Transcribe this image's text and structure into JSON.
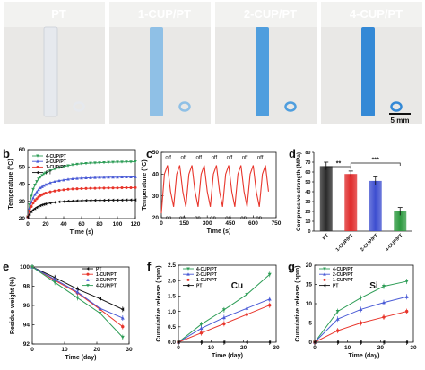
{
  "panel_a": {
    "letter": "a",
    "labels": [
      "PT",
      "1-CUP/PT",
      "2-CUP/PT",
      "4-CUP/PT"
    ],
    "scale_bar": "5 mm",
    "fiber_colors": [
      "#e6e9ee",
      "#8fc0e6",
      "#4f9ede",
      "#3489d6"
    ]
  },
  "chart_data": [
    {
      "id": "b",
      "letter": "b",
      "type": "line",
      "xlabel": "Time (s)",
      "ylabel": "Temperature (°C)",
      "xlim": [
        0,
        120
      ],
      "ylim": [
        20,
        60
      ],
      "xticks": [
        0,
        20,
        40,
        60,
        80,
        100,
        120
      ],
      "yticks": [
        20,
        30,
        40,
        50,
        60
      ],
      "legend_position": "top-left",
      "series": [
        {
          "name": "4-CUP/PT",
          "color": "#2e9d57",
          "marker": "triangle-down",
          "x": [
            0,
            2,
            4,
            6,
            8,
            10,
            12,
            14,
            16,
            18,
            20,
            25,
            30,
            35,
            40,
            45,
            50,
            55,
            60,
            65,
            70,
            75,
            80,
            85,
            90,
            95,
            100,
            105,
            110,
            115,
            120
          ],
          "y": [
            21,
            28,
            33,
            37,
            39.5,
            41.5,
            43,
            44,
            45,
            46,
            46.5,
            47.8,
            48.8,
            49.5,
            50.2,
            50.7,
            51.2,
            51.5,
            51.8,
            52,
            52.2,
            52.3,
            52.4,
            52.5,
            52.6,
            52.7,
            52.8,
            52.8,
            52.9,
            52.9,
            53
          ]
        },
        {
          "name": "2-CUP/PT",
          "color": "#4a5bd6",
          "marker": "triangle-up",
          "x": [
            0,
            2,
            4,
            6,
            8,
            10,
            12,
            14,
            16,
            18,
            20,
            25,
            30,
            35,
            40,
            45,
            50,
            55,
            60,
            65,
            70,
            75,
            80,
            85,
            90,
            95,
            100,
            105,
            110,
            115,
            120
          ],
          "y": [
            21,
            26,
            29.5,
            32,
            34,
            35.5,
            36.8,
            37.8,
            38.5,
            39.2,
            39.8,
            40.8,
            41.5,
            42,
            42.4,
            42.8,
            43.1,
            43.3,
            43.5,
            43.6,
            43.7,
            43.8,
            43.9,
            43.9,
            44,
            44,
            44,
            44.1,
            44.1,
            44.1,
            44.2
          ]
        },
        {
          "name": "1-CUP/PT",
          "color": "#e8352b",
          "marker": "circle",
          "x": [
            0,
            2,
            4,
            6,
            8,
            10,
            12,
            14,
            16,
            18,
            20,
            25,
            30,
            35,
            40,
            45,
            50,
            55,
            60,
            65,
            70,
            75,
            80,
            85,
            90,
            95,
            100,
            105,
            110,
            115,
            120
          ],
          "y": [
            21,
            24.5,
            27,
            29,
            30.5,
            31.5,
            32.5,
            33.3,
            33.9,
            34.4,
            34.8,
            35.5,
            36,
            36.4,
            36.7,
            37,
            37.2,
            37.3,
            37.4,
            37.5,
            37.6,
            37.6,
            37.7,
            37.7,
            37.8,
            37.8,
            37.8,
            37.9,
            37.9,
            37.9,
            38
          ]
        },
        {
          "name": "PT",
          "color": "#111111",
          "marker": "arrow-left",
          "x": [
            0,
            2,
            4,
            6,
            8,
            10,
            12,
            14,
            16,
            18,
            20,
            25,
            30,
            35,
            40,
            45,
            50,
            55,
            60,
            65,
            70,
            75,
            80,
            85,
            90,
            95,
            100,
            105,
            110,
            115,
            120
          ],
          "y": [
            21,
            22.5,
            24,
            25,
            25.8,
            26.5,
            27,
            27.5,
            27.9,
            28.2,
            28.5,
            29,
            29.4,
            29.7,
            29.9,
            30.1,
            30.2,
            30.3,
            30.4,
            30.5,
            30.5,
            30.6,
            30.6,
            30.6,
            30.7,
            30.7,
            30.7,
            30.7,
            30.8,
            30.8,
            30.8
          ]
        }
      ]
    },
    {
      "id": "c",
      "letter": "c",
      "type": "line",
      "xlabel": "Time (s)",
      "ylabel": "Temperature (°C)",
      "xlim": [
        0,
        750
      ],
      "ylim": [
        20,
        50
      ],
      "xticks": [
        0,
        150,
        300,
        450,
        600,
        750
      ],
      "yticks": [
        20,
        30,
        40,
        50
      ],
      "series": [
        {
          "name": "",
          "color": "#e8352b",
          "x": [
            0,
            20,
            40,
            60,
            80,
            100,
            120,
            140,
            160,
            180,
            200,
            220,
            240,
            260,
            280,
            300,
            320,
            340,
            360,
            380,
            400,
            420,
            440,
            460,
            480,
            500,
            520,
            540,
            560,
            580,
            600,
            620,
            640,
            660,
            680,
            700
          ],
          "y": [
            22,
            40,
            44,
            32,
            25,
            40,
            44,
            32,
            25,
            40,
            44,
            32,
            25,
            40,
            44,
            32,
            25,
            40,
            44,
            32,
            25,
            40,
            44,
            32,
            25,
            40,
            44,
            32,
            25,
            40,
            44,
            32,
            25,
            40,
            44,
            32
          ]
        }
      ],
      "annotations_off": [
        {
          "text": "off",
          "x": 45,
          "y": 47
        },
        {
          "text": "off",
          "x": 145,
          "y": 47
        },
        {
          "text": "off",
          "x": 245,
          "y": 47
        },
        {
          "text": "off",
          "x": 345,
          "y": 47
        },
        {
          "text": "off",
          "x": 445,
          "y": 47
        },
        {
          "text": "off",
          "x": 545,
          "y": 47
        },
        {
          "text": "off",
          "x": 645,
          "y": 47
        }
      ],
      "annotations_on": [
        {
          "text": "on",
          "x": 0,
          "y": 22
        },
        {
          "text": "on",
          "x": 90,
          "y": 22
        },
        {
          "text": "on",
          "x": 190,
          "y": 22
        },
        {
          "text": "on",
          "x": 290,
          "y": 22
        },
        {
          "text": "on",
          "x": 390,
          "y": 22
        },
        {
          "text": "on",
          "x": 490,
          "y": 22
        },
        {
          "text": "on",
          "x": 590,
          "y": 22
        }
      ]
    },
    {
      "id": "d",
      "letter": "d",
      "type": "bar",
      "ylabel": "Compressive strength (MPa)",
      "ylim": [
        0,
        80
      ],
      "yticks": [
        0,
        10,
        20,
        30,
        40,
        50,
        60,
        70,
        80
      ],
      "categories": [
        "PT",
        "1-CUP/PT",
        "2-CUP/PT",
        "4-CUP/PT"
      ],
      "values": [
        66,
        58,
        51,
        20
      ],
      "errors": [
        4,
        3,
        4,
        4
      ],
      "colors": [
        "#2b2b2b",
        "#e02a2a",
        "#3d4ed0",
        "#2d9a40"
      ],
      "significance": [
        {
          "from": 0,
          "to": 1,
          "label": "**"
        },
        {
          "from": 1,
          "to": 3,
          "label": "***"
        }
      ]
    },
    {
      "id": "e",
      "letter": "e",
      "type": "line",
      "xlabel": "Time (day)",
      "ylabel": "Residue weight (%)",
      "xlim": [
        0,
        30
      ],
      "ylim": [
        92,
        100
      ],
      "xticks": [
        0,
        10,
        20,
        30
      ],
      "yticks": [
        92,
        94,
        96,
        98,
        100
      ],
      "legend_position": "top-right",
      "series": [
        {
          "name": "PT",
          "color": "#111111",
          "marker": "arrow-left",
          "x": [
            0,
            7,
            14,
            21,
            28
          ],
          "y": [
            100,
            98.9,
            97.7,
            96.7,
            95.6
          ]
        },
        {
          "name": "1-CUP/PT",
          "color": "#e8352b",
          "marker": "circle",
          "x": [
            0,
            7,
            14,
            21,
            28
          ],
          "y": [
            100,
            98.6,
            97.3,
            95.6,
            93.8
          ]
        },
        {
          "name": "2-CUP/PT",
          "color": "#4a5bd6",
          "marker": "triangle-up",
          "x": [
            0,
            7,
            14,
            21,
            28
          ],
          "y": [
            100,
            98.7,
            97.4,
            95.7,
            94.7
          ]
        },
        {
          "name": "4-CUP/PT",
          "color": "#2e9d57",
          "marker": "triangle-down",
          "x": [
            0,
            7,
            14,
            21,
            28
          ],
          "y": [
            100,
            98.4,
            96.8,
            95.2,
            92.7
          ]
        }
      ]
    },
    {
      "id": "f",
      "letter": "f",
      "type": "line",
      "xlabel": "Time (day)",
      "ylabel": "Cumulative release (ppm)",
      "annotation": "Cu",
      "xlim": [
        0,
        30
      ],
      "ylim": [
        0,
        2.5
      ],
      "xticks": [
        0,
        10,
        20,
        30
      ],
      "yticks": [
        0.0,
        0.5,
        1.0,
        1.5,
        2.0,
        2.5
      ],
      "legend_position": "top-left",
      "series": [
        {
          "name": "4-CUP/PT",
          "color": "#2e9d57",
          "marker": "triangle-down",
          "x": [
            0,
            7,
            14,
            21,
            28
          ],
          "y": [
            0,
            0.58,
            1.05,
            1.55,
            2.2
          ]
        },
        {
          "name": "2-CUP/PT",
          "color": "#4a5bd6",
          "marker": "triangle-up",
          "x": [
            0,
            7,
            14,
            21,
            28
          ],
          "y": [
            0,
            0.45,
            0.8,
            1.1,
            1.4
          ]
        },
        {
          "name": "1-CUP/PT",
          "color": "#e8352b",
          "marker": "circle",
          "x": [
            0,
            7,
            14,
            21,
            28
          ],
          "y": [
            0,
            0.3,
            0.6,
            0.9,
            1.2
          ]
        },
        {
          "name": "PT",
          "color": "#111111",
          "marker": "arrow-left",
          "x": [
            0,
            7,
            14,
            21,
            28
          ],
          "y": [
            0,
            0,
            0,
            0,
            0
          ]
        }
      ]
    },
    {
      "id": "g",
      "letter": "g",
      "type": "line",
      "xlabel": "Time (day)",
      "ylabel": "Cumulative release (ppm)",
      "annotation": "Si",
      "xlim": [
        0,
        30
      ],
      "ylim": [
        0,
        20
      ],
      "xticks": [
        0,
        10,
        20,
        30
      ],
      "yticks": [
        0,
        5,
        10,
        15,
        20
      ],
      "legend_position": "top-left",
      "series": [
        {
          "name": "4-CUP/PT",
          "color": "#2e9d57",
          "marker": "triangle-down",
          "x": [
            0,
            7,
            14,
            21,
            28
          ],
          "y": [
            0,
            8,
            11.5,
            14.5,
            15.8
          ]
        },
        {
          "name": "2-CUP/PT",
          "color": "#4a5bd6",
          "marker": "triangle-up",
          "x": [
            0,
            7,
            14,
            21,
            28
          ],
          "y": [
            0,
            6,
            8.5,
            10.3,
            11.8
          ]
        },
        {
          "name": "1-CUP/PT",
          "color": "#e8352b",
          "marker": "circle",
          "x": [
            0,
            7,
            14,
            21,
            28
          ],
          "y": [
            0,
            3,
            5,
            6.5,
            8
          ]
        },
        {
          "name": "PT",
          "color": "#111111",
          "marker": "arrow-left",
          "x": [
            0,
            7,
            14,
            21,
            28
          ],
          "y": [
            0,
            0,
            0,
            0,
            0
          ]
        }
      ]
    }
  ]
}
